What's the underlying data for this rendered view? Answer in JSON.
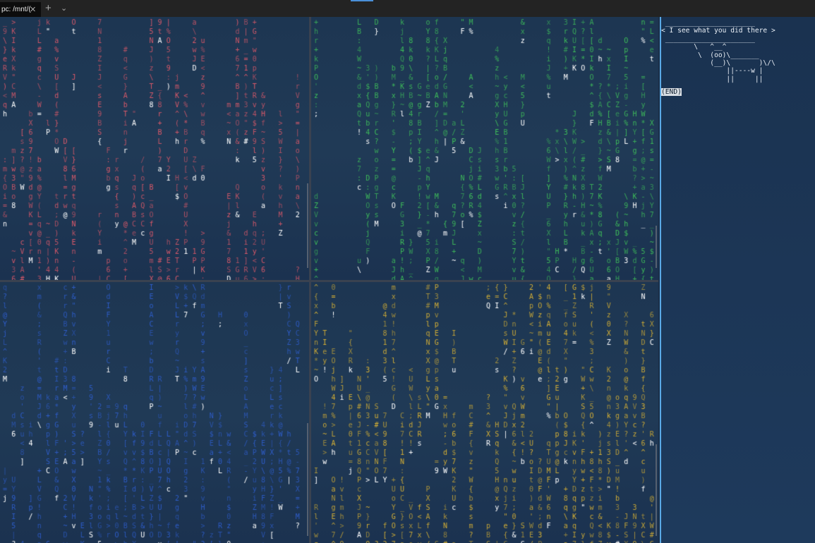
{
  "tabbar": {
    "tab_title": "pc: /mnt/(",
    "close_icon": "close-icon",
    "new_tab_icon": "plus-icon",
    "dropdown_icon": "chevron-down-icon",
    "close_glyph": "✕",
    "new_tab_glyph": "+",
    "dropdown_glyph": "⌄"
  },
  "panes": [
    {
      "name": "matrix-red",
      "color": "#e05a6a",
      "highlight": "#ffffff",
      "charset": "ABCDEFGHIJKLMNOPQRSTUVWXYZabcdefghijklmnopqrstuvwxyz0123456789!@#$%^&*()[]{}<>?/\\|;:'\"~+=-_"
    },
    {
      "name": "matrix-green",
      "color": "#3fc25a",
      "highlight": "#ffffff",
      "charset": "ABCDEFGHIJKLMNOPQRSTUVWXYZabcdefghijklmnopqrstuvwxyz0123456789!@#$%^&*()[]{}<>?/\\|;:'\"~+=-_"
    },
    {
      "name": "matrix-blue",
      "color": "#2f5fd0",
      "highlight": "#ffffff",
      "charset": "ABCDEFGHIJKLMNOPQRSTUVWXYZabcdefghijklmnopqrstuvwxyz0123456789!@#$%^&*()[]{}<>?/\\|;:'\"~+=-_"
    },
    {
      "name": "matrix-yellow",
      "color": "#d9b234",
      "highlight": "#ffffff",
      "charset": "ABCDEFGHIJKLMNOPQRSTUVWXYZabcdefghijklmnopqrstuvwxyz0123456789!@#$%^&*()[]{}<>?/\\|;:'\"~+=-_"
    }
  ],
  "cowsay": {
    "text": " ______________________\n< I see what you did there >\n ______________________\n        \\   ^__^\n         \\  (oo)\\_______\n            (__)\\       )\\/\\\n                ||----w |\n                ||     ||",
    "end_label": "(END)"
  }
}
